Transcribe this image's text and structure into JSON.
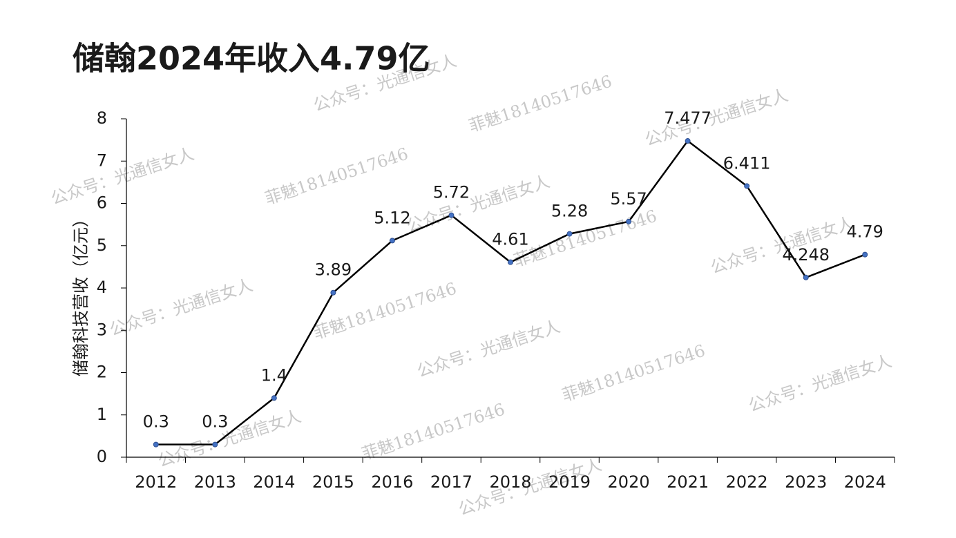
{
  "chart_data": {
    "type": "line",
    "title": "储翰2024年收入4.79亿",
    "y_label": "储翰科技营收（亿元）",
    "categories": [
      "2012",
      "2013",
      "2014",
      "2015",
      "2016",
      "2017",
      "2018",
      "2019",
      "2020",
      "2021",
      "2022",
      "2023",
      "2024"
    ],
    "series": [
      {
        "name": "储翰科技营收",
        "color": "#000000",
        "marker_color": "#4472c4",
        "values": [
          0.3,
          0.3,
          1.4,
          3.89,
          5.12,
          5.72,
          4.61,
          5.28,
          5.57,
          7.477,
          6.411,
          4.248,
          4.79
        ]
      }
    ],
    "ylim": [
      0,
      8
    ],
    "yticks": [
      0,
      1,
      2,
      3,
      4,
      5,
      6,
      7,
      8
    ],
    "watermarks": [
      "公众号：光通信女人",
      "菲魅18140517646"
    ]
  }
}
